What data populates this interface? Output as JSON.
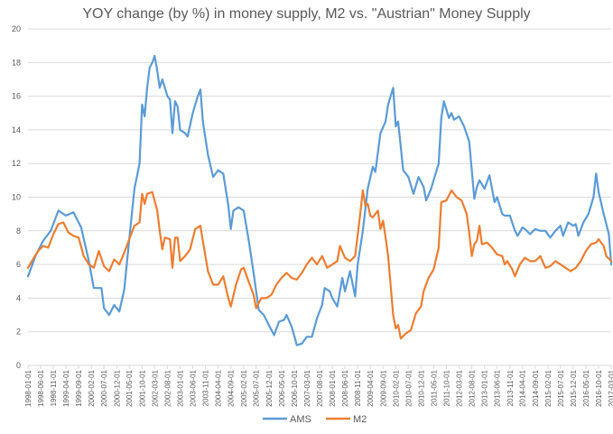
{
  "chart_data": {
    "type": "line",
    "title": "YOY change (by %) in money supply, M2 vs. \"Austrian\" Money Supply",
    "xlabel": "",
    "ylabel": "",
    "ylim": [
      0,
      20
    ],
    "y_ticks": [
      "0",
      "2",
      "4",
      "6",
      "8",
      "10",
      "12",
      "14",
      "16",
      "18",
      "20"
    ],
    "x_ticks": [
      "1998-01-01",
      "1998-06-01",
      "1998-11-01",
      "1999-04-01",
      "1999-09-01",
      "2000-02-01",
      "2000-07-01",
      "2000-12-01",
      "2001-05-01",
      "2001-10-01",
      "2002-03-01",
      "2002-08-01",
      "2003-01-01",
      "2003-06-01",
      "2003-11-01",
      "2004-04-01",
      "2004-09-01",
      "2005-02-01",
      "2005-07-01",
      "2005-12-01",
      "2006-05-01",
      "2006-10-01",
      "2007-03-01",
      "2007-08-01",
      "2008-01-01",
      "2008-06-01",
      "2008-11-01",
      "2009-04-01",
      "2009-09-01",
      "2010-02-01",
      "2010-07-01",
      "2010-12-01",
      "2011-05-01",
      "2011-10-01",
      "2012-03-01",
      "2012-08-01",
      "2013-01-01",
      "2013-06-01",
      "2013-11-01",
      "2014-04-01",
      "2014-09-01",
      "2015-02-01",
      "2015-07-01",
      "2015-12-01",
      "2016-05-01",
      "2016-10-01",
      "2017-03-01"
    ],
    "grid": true,
    "legend_position": "bottom",
    "series": [
      {
        "name": "AMS",
        "color": "#5b9bd5",
        "points": [
          [
            "1998-01-01",
            5.3
          ],
          [
            "1998-04-01",
            6.5
          ],
          [
            "1998-07-01",
            7.4
          ],
          [
            "1998-10-01",
            8.0
          ],
          [
            "1999-01-01",
            9.2
          ],
          [
            "1999-04-01",
            8.9
          ],
          [
            "1999-07-01",
            9.1
          ],
          [
            "1999-10-01",
            8.2
          ],
          [
            "2000-01-01",
            6.2
          ],
          [
            "2000-03-01",
            4.6
          ],
          [
            "2000-06-01",
            4.6
          ],
          [
            "2000-07-01",
            3.4
          ],
          [
            "2000-09-01",
            3.0
          ],
          [
            "2000-11-01",
            3.6
          ],
          [
            "2001-01-01",
            3.2
          ],
          [
            "2001-03-01",
            4.5
          ],
          [
            "2001-05-01",
            7.5
          ],
          [
            "2001-07-01",
            10.5
          ],
          [
            "2001-09-01",
            12.0
          ],
          [
            "2001-10-01",
            15.5
          ],
          [
            "2001-11-01",
            14.8
          ],
          [
            "2001-12-01",
            16.5
          ],
          [
            "2002-01-01",
            17.7
          ],
          [
            "2002-02-01",
            18.0
          ],
          [
            "2002-03-01",
            18.4
          ],
          [
            "2002-04-01",
            17.5
          ],
          [
            "2002-05-01",
            16.5
          ],
          [
            "2002-06-01",
            17.0
          ],
          [
            "2002-08-01",
            16.0
          ],
          [
            "2002-09-01",
            15.8
          ],
          [
            "2002-10-01",
            13.8
          ],
          [
            "2002-11-01",
            15.7
          ],
          [
            "2002-12-01",
            15.4
          ],
          [
            "2003-01-01",
            14.0
          ],
          [
            "2003-03-01",
            13.8
          ],
          [
            "2003-04-01",
            13.6
          ],
          [
            "2003-06-01",
            15.0
          ],
          [
            "2003-08-01",
            16.0
          ],
          [
            "2003-09-01",
            16.4
          ],
          [
            "2003-10-01",
            14.5
          ],
          [
            "2003-12-01",
            12.5
          ],
          [
            "2004-02-01",
            11.2
          ],
          [
            "2004-04-01",
            11.6
          ],
          [
            "2004-06-01",
            11.4
          ],
          [
            "2004-08-01",
            9.5
          ],
          [
            "2004-09-01",
            8.1
          ],
          [
            "2004-10-01",
            9.2
          ],
          [
            "2004-12-01",
            9.4
          ],
          [
            "2005-02-01",
            9.2
          ],
          [
            "2005-04-01",
            7.5
          ],
          [
            "2005-06-01",
            5.5
          ],
          [
            "2005-08-01",
            3.3
          ],
          [
            "2005-10-01",
            3.0
          ],
          [
            "2005-12-01",
            2.4
          ],
          [
            "2006-02-01",
            1.8
          ],
          [
            "2006-04-01",
            2.6
          ],
          [
            "2006-06-01",
            2.7
          ],
          [
            "2006-07-01",
            3.0
          ],
          [
            "2006-09-01",
            2.3
          ],
          [
            "2006-11-01",
            1.2
          ],
          [
            "2007-01-01",
            1.3
          ],
          [
            "2007-03-01",
            1.7
          ],
          [
            "2007-05-01",
            1.7
          ],
          [
            "2007-07-01",
            2.8
          ],
          [
            "2007-09-01",
            3.6
          ],
          [
            "2007-10-01",
            4.6
          ],
          [
            "2007-12-01",
            4.4
          ],
          [
            "2008-01-01",
            4.0
          ],
          [
            "2008-03-01",
            3.5
          ],
          [
            "2008-05-01",
            5.2
          ],
          [
            "2008-06-01",
            4.4
          ],
          [
            "2008-08-01",
            5.6
          ],
          [
            "2008-10-01",
            4.1
          ],
          [
            "2008-11-01",
            6.0
          ],
          [
            "2009-01-01",
            8.0
          ],
          [
            "2009-03-01",
            10.5
          ],
          [
            "2009-05-01",
            11.8
          ],
          [
            "2009-06-01",
            11.5
          ],
          [
            "2009-08-01",
            13.8
          ],
          [
            "2009-10-01",
            14.5
          ],
          [
            "2009-11-01",
            15.5
          ],
          [
            "2010-01-01",
            16.5
          ],
          [
            "2010-02-01",
            14.2
          ],
          [
            "2010-03-01",
            14.5
          ],
          [
            "2010-05-01",
            11.6
          ],
          [
            "2010-07-01",
            11.2
          ],
          [
            "2010-09-01",
            10.2
          ],
          [
            "2010-11-01",
            11.2
          ],
          [
            "2011-01-01",
            10.6
          ],
          [
            "2011-02-01",
            9.8
          ],
          [
            "2011-04-01",
            10.5
          ],
          [
            "2011-05-01",
            11.0
          ],
          [
            "2011-07-01",
            12.0
          ],
          [
            "2011-08-01",
            14.7
          ],
          [
            "2011-09-01",
            15.7
          ],
          [
            "2011-11-01",
            14.7
          ],
          [
            "2011-12-01",
            15.0
          ],
          [
            "2012-01-01",
            14.6
          ],
          [
            "2012-03-01",
            14.8
          ],
          [
            "2012-05-01",
            14.2
          ],
          [
            "2012-07-01",
            13.3
          ],
          [
            "2012-08-01",
            11.6
          ],
          [
            "2012-09-01",
            9.9
          ],
          [
            "2012-10-01",
            10.6
          ],
          [
            "2012-11-01",
            11.0
          ],
          [
            "2013-01-01",
            10.5
          ],
          [
            "2013-03-01",
            11.3
          ],
          [
            "2013-05-01",
            9.7
          ],
          [
            "2013-06-01",
            10.0
          ],
          [
            "2013-08-01",
            9.0
          ],
          [
            "2013-09-01",
            8.9
          ],
          [
            "2013-11-01",
            8.9
          ],
          [
            "2014-01-01",
            8.0
          ],
          [
            "2014-02-01",
            7.7
          ],
          [
            "2014-04-01",
            8.2
          ],
          [
            "2014-05-01",
            8.1
          ],
          [
            "2014-07-01",
            7.8
          ],
          [
            "2014-09-01",
            8.1
          ],
          [
            "2014-11-01",
            8.0
          ],
          [
            "2015-01-01",
            8.0
          ],
          [
            "2015-03-01",
            7.6
          ],
          [
            "2015-05-01",
            8.0
          ],
          [
            "2015-07-01",
            8.3
          ],
          [
            "2015-08-01",
            7.7
          ],
          [
            "2015-10-01",
            8.5
          ],
          [
            "2015-12-01",
            8.3
          ],
          [
            "2016-01-01",
            8.4
          ],
          [
            "2016-02-01",
            7.7
          ],
          [
            "2016-04-01",
            8.5
          ],
          [
            "2016-06-01",
            9.0
          ],
          [
            "2016-08-01",
            10.0
          ],
          [
            "2016-09-01",
            11.4
          ],
          [
            "2016-10-01",
            10.3
          ],
          [
            "2016-12-01",
            9.0
          ],
          [
            "2017-02-01",
            7.8
          ],
          [
            "2017-03-01",
            6.0
          ]
        ]
      },
      {
        "name": "M2",
        "color": "#ed7d31",
        "points": [
          [
            "1998-01-01",
            5.8
          ],
          [
            "1998-03-01",
            6.3
          ],
          [
            "1998-05-01",
            6.8
          ],
          [
            "1998-07-01",
            7.1
          ],
          [
            "1998-09-01",
            7.0
          ],
          [
            "1998-11-01",
            7.8
          ],
          [
            "1999-01-01",
            8.4
          ],
          [
            "1999-03-01",
            8.5
          ],
          [
            "1999-05-01",
            7.9
          ],
          [
            "1999-07-01",
            7.7
          ],
          [
            "1999-09-01",
            7.6
          ],
          [
            "1999-11-01",
            6.5
          ],
          [
            "2000-01-01",
            6.0
          ],
          [
            "2000-03-01",
            5.8
          ],
          [
            "2000-05-01",
            6.8
          ],
          [
            "2000-07-01",
            5.9
          ],
          [
            "2000-09-01",
            5.6
          ],
          [
            "2000-11-01",
            6.3
          ],
          [
            "2001-01-01",
            6.0
          ],
          [
            "2001-03-01",
            6.7
          ],
          [
            "2001-05-01",
            7.5
          ],
          [
            "2001-07-01",
            8.3
          ],
          [
            "2001-09-01",
            8.5
          ],
          [
            "2001-10-01",
            10.2
          ],
          [
            "2001-11-01",
            9.6
          ],
          [
            "2001-12-01",
            10.2
          ],
          [
            "2002-02-01",
            10.3
          ],
          [
            "2002-04-01",
            9.2
          ],
          [
            "2002-05-01",
            8.0
          ],
          [
            "2002-06-01",
            6.9
          ],
          [
            "2002-07-01",
            7.6
          ],
          [
            "2002-09-01",
            7.5
          ],
          [
            "2002-10-01",
            5.8
          ],
          [
            "2002-11-01",
            7.6
          ],
          [
            "2002-12-01",
            7.6
          ],
          [
            "2003-01-01",
            6.2
          ],
          [
            "2003-03-01",
            6.5
          ],
          [
            "2003-05-01",
            6.9
          ],
          [
            "2003-07-01",
            8.1
          ],
          [
            "2003-09-01",
            8.3
          ],
          [
            "2003-10-01",
            7.4
          ],
          [
            "2003-12-01",
            5.6
          ],
          [
            "2004-02-01",
            4.8
          ],
          [
            "2004-04-01",
            4.8
          ],
          [
            "2004-06-01",
            5.3
          ],
          [
            "2004-08-01",
            4.0
          ],
          [
            "2004-09-01",
            3.5
          ],
          [
            "2004-11-01",
            4.8
          ],
          [
            "2005-01-01",
            5.7
          ],
          [
            "2005-02-01",
            5.8
          ],
          [
            "2005-04-01",
            5.0
          ],
          [
            "2005-06-01",
            4.2
          ],
          [
            "2005-07-01",
            3.4
          ],
          [
            "2005-09-01",
            4.0
          ],
          [
            "2005-11-01",
            4.0
          ],
          [
            "2006-01-01",
            4.2
          ],
          [
            "2006-03-01",
            4.8
          ],
          [
            "2006-05-01",
            5.2
          ],
          [
            "2006-07-01",
            5.5
          ],
          [
            "2006-09-01",
            5.2
          ],
          [
            "2006-11-01",
            5.1
          ],
          [
            "2007-01-01",
            5.5
          ],
          [
            "2007-03-01",
            6.0
          ],
          [
            "2007-05-01",
            6.4
          ],
          [
            "2007-07-01",
            6.0
          ],
          [
            "2007-09-01",
            6.5
          ],
          [
            "2007-11-01",
            5.8
          ],
          [
            "2008-01-01",
            6.0
          ],
          [
            "2008-03-01",
            6.2
          ],
          [
            "2008-04-01",
            7.1
          ],
          [
            "2008-06-01",
            6.4
          ],
          [
            "2008-08-01",
            6.2
          ],
          [
            "2008-10-01",
            6.5
          ],
          [
            "2008-12-01",
            9.0
          ],
          [
            "2009-01-01",
            10.4
          ],
          [
            "2009-02-01",
            9.5
          ],
          [
            "2009-03-01",
            9.6
          ],
          [
            "2009-04-01",
            8.9
          ],
          [
            "2009-05-01",
            8.8
          ],
          [
            "2009-07-01",
            9.2
          ],
          [
            "2009-08-01",
            8.1
          ],
          [
            "2009-09-01",
            8.6
          ],
          [
            "2009-10-01",
            7.6
          ],
          [
            "2009-11-01",
            6.5
          ],
          [
            "2010-01-01",
            3.0
          ],
          [
            "2010-02-01",
            2.2
          ],
          [
            "2010-03-01",
            2.4
          ],
          [
            "2010-04-01",
            1.6
          ],
          [
            "2010-06-01",
            1.9
          ],
          [
            "2010-08-01",
            2.1
          ],
          [
            "2010-10-01",
            3.1
          ],
          [
            "2010-12-01",
            3.5
          ],
          [
            "2011-01-01",
            4.4
          ],
          [
            "2011-03-01",
            5.2
          ],
          [
            "2011-05-01",
            5.7
          ],
          [
            "2011-07-01",
            7.0
          ],
          [
            "2011-08-01",
            9.7
          ],
          [
            "2011-10-01",
            9.8
          ],
          [
            "2011-12-01",
            10.4
          ],
          [
            "2012-02-01",
            10.0
          ],
          [
            "2012-04-01",
            9.8
          ],
          [
            "2012-06-01",
            9.0
          ],
          [
            "2012-07-01",
            7.9
          ],
          [
            "2012-08-01",
            6.5
          ],
          [
            "2012-09-01",
            7.2
          ],
          [
            "2012-10-01",
            7.4
          ],
          [
            "2012-11-01",
            8.3
          ],
          [
            "2012-12-01",
            7.2
          ],
          [
            "2013-02-01",
            7.3
          ],
          [
            "2013-04-01",
            7.0
          ],
          [
            "2013-06-01",
            6.6
          ],
          [
            "2013-08-01",
            6.5
          ],
          [
            "2013-09-01",
            6.0
          ],
          [
            "2013-10-01",
            6.2
          ],
          [
            "2013-12-01",
            5.7
          ],
          [
            "2014-01-01",
            5.3
          ],
          [
            "2014-03-01",
            6.0
          ],
          [
            "2014-05-01",
            6.4
          ],
          [
            "2014-07-01",
            6.2
          ],
          [
            "2014-09-01",
            6.2
          ],
          [
            "2014-11-01",
            6.5
          ],
          [
            "2015-01-01",
            5.8
          ],
          [
            "2015-03-01",
            5.9
          ],
          [
            "2015-05-01",
            6.2
          ],
          [
            "2015-07-01",
            6.0
          ],
          [
            "2015-09-01",
            5.8
          ],
          [
            "2015-11-01",
            5.6
          ],
          [
            "2016-01-01",
            5.8
          ],
          [
            "2016-03-01",
            6.2
          ],
          [
            "2016-05-01",
            6.8
          ],
          [
            "2016-07-01",
            7.2
          ],
          [
            "2016-09-01",
            7.3
          ],
          [
            "2016-10-01",
            7.5
          ],
          [
            "2016-12-01",
            7.1
          ],
          [
            "2017-01-01",
            6.5
          ],
          [
            "2017-03-01",
            6.2
          ]
        ]
      }
    ]
  }
}
